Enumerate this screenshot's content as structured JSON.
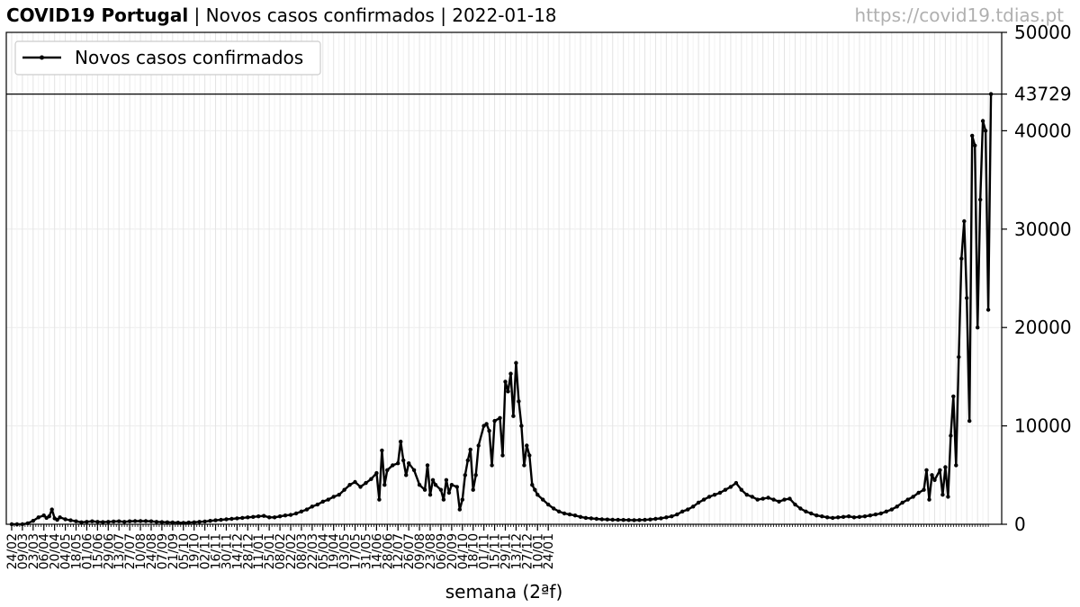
{
  "header": {
    "title_bold": "COVID19 Portugal",
    "sep1": " | ",
    "subtitle": "Novos casos confirmados",
    "sep2": " | ",
    "date": "2022-01-18"
  },
  "source_url": "https://covid19.tdias.pt",
  "chart_data": {
    "type": "line",
    "xlabel": "semana (2ªf)",
    "ylabel": "",
    "y_axis_side": "right",
    "ylim": [
      0,
      50000
    ],
    "yticks": [
      0,
      10000,
      20000,
      30000,
      40000,
      50000
    ],
    "reference_line": {
      "value": 43729,
      "label": "43729"
    },
    "grid": true,
    "legend": {
      "placement": "top-left"
    },
    "line_color": "#000000",
    "x_tick_labels": [
      "24/02",
      "09/03",
      "23/03",
      "06/04",
      "20/04",
      "04/05",
      "18/05",
      "01/06",
      "15/06",
      "29/06",
      "13/07",
      "27/07",
      "10/08",
      "24/08",
      "07/09",
      "21/09",
      "05/10",
      "19/10",
      "02/11",
      "16/11",
      "30/11",
      "14/12",
      "28/12",
      "11/01",
      "25/01",
      "08/02",
      "22/02",
      "08/03",
      "22/03",
      "05/04",
      "19/04",
      "03/05",
      "17/05",
      "31/05",
      "14/06",
      "28/06",
      "12/07",
      "26/07",
      "09/08",
      "23/08",
      "06/09",
      "20/09",
      "04/10",
      "18/10",
      "01/11",
      "15/11",
      "29/11",
      "13/12",
      "27/12",
      "10/01",
      "24/01"
    ],
    "x_unit": "weeks since 24/02/2020 (2020-02-24 = 0)",
    "series": [
      {
        "name": "Novos casos confirmados",
        "points": [
          [
            0,
            0
          ],
          [
            1,
            0
          ],
          [
            2,
            0
          ],
          [
            3,
            100
          ],
          [
            4,
            350
          ],
          [
            5,
            700
          ],
          [
            6,
            900
          ],
          [
            6.5,
            650
          ],
          [
            7,
            800
          ],
          [
            7.5,
            1500
          ],
          [
            8,
            600
          ],
          [
            8.5,
            450
          ],
          [
            9,
            700
          ],
          [
            10,
            500
          ],
          [
            11,
            400
          ],
          [
            12,
            300
          ],
          [
            13,
            200
          ],
          [
            14,
            250
          ],
          [
            15,
            300
          ],
          [
            16,
            250
          ],
          [
            17,
            220
          ],
          [
            18,
            250
          ],
          [
            19,
            280
          ],
          [
            20,
            300
          ],
          [
            21,
            250
          ],
          [
            22,
            300
          ],
          [
            23,
            320
          ],
          [
            24,
            330
          ],
          [
            25,
            320
          ],
          [
            26,
            300
          ],
          [
            27,
            250
          ],
          [
            28,
            220
          ],
          [
            29,
            200
          ],
          [
            30,
            180
          ],
          [
            31,
            160
          ],
          [
            32,
            150
          ],
          [
            33,
            170
          ],
          [
            34,
            200
          ],
          [
            35,
            250
          ],
          [
            36,
            280
          ],
          [
            37,
            350
          ],
          [
            38,
            400
          ],
          [
            39,
            450
          ],
          [
            40,
            500
          ],
          [
            41,
            550
          ],
          [
            42,
            600
          ],
          [
            43,
            650
          ],
          [
            44,
            700
          ],
          [
            45,
            750
          ],
          [
            46,
            800
          ],
          [
            47,
            850
          ],
          [
            48,
            700
          ],
          [
            49,
            700
          ],
          [
            50,
            800
          ],
          [
            51,
            900
          ],
          [
            52,
            950
          ],
          [
            53,
            1100
          ],
          [
            54,
            1300
          ],
          [
            55,
            1500
          ],
          [
            56,
            1800
          ],
          [
            57,
            2000
          ],
          [
            58,
            2300
          ],
          [
            59,
            2500
          ],
          [
            60,
            2800
          ],
          [
            61,
            3000
          ],
          [
            62,
            3500
          ],
          [
            63,
            4000
          ],
          [
            64,
            4300
          ],
          [
            65,
            3800
          ],
          [
            66,
            4200
          ],
          [
            67,
            4600
          ],
          [
            68,
            5200
          ],
          [
            68.5,
            2500
          ],
          [
            69,
            7500
          ],
          [
            69.5,
            4000
          ],
          [
            70,
            5500
          ],
          [
            71,
            6000
          ],
          [
            72,
            6200
          ],
          [
            72.5,
            8400
          ],
          [
            73,
            6500
          ],
          [
            73.5,
            5000
          ],
          [
            74,
            6200
          ],
          [
            75,
            5500
          ],
          [
            76,
            4000
          ],
          [
            77,
            3500
          ],
          [
            77.5,
            6000
          ],
          [
            78,
            3000
          ],
          [
            78.5,
            4500
          ],
          [
            79,
            4000
          ],
          [
            80,
            3500
          ],
          [
            80.5,
            2500
          ],
          [
            81,
            4500
          ],
          [
            81.5,
            3200
          ],
          [
            82,
            4000
          ],
          [
            83,
            3800
          ],
          [
            83.5,
            1500
          ],
          [
            84,
            2500
          ],
          [
            84.5,
            5000
          ],
          [
            85,
            6500
          ],
          [
            85.5,
            7600
          ],
          [
            86,
            3500
          ],
          [
            86.5,
            5000
          ],
          [
            87,
            8000
          ],
          [
            88,
            10000
          ],
          [
            88.5,
            10200
          ],
          [
            89,
            9500
          ],
          [
            89.5,
            6000
          ],
          [
            90,
            10500
          ],
          [
            91,
            10800
          ],
          [
            91.5,
            7000
          ],
          [
            92,
            14500
          ],
          [
            92.5,
            13500
          ],
          [
            93,
            15300
          ],
          [
            93.5,
            11000
          ],
          [
            94,
            16400
          ],
          [
            94.5,
            12500
          ],
          [
            95,
            10000
          ],
          [
            95.5,
            6000
          ],
          [
            96,
            8000
          ],
          [
            96.5,
            7000
          ],
          [
            97,
            4000
          ],
          [
            97.5,
            3500
          ],
          [
            98,
            3000
          ],
          [
            99,
            2500
          ],
          [
            100,
            2000
          ],
          [
            101,
            1600
          ],
          [
            102,
            1300
          ],
          [
            103,
            1100
          ],
          [
            104,
            1000
          ],
          [
            105,
            900
          ],
          [
            106,
            750
          ],
          [
            107,
            650
          ],
          [
            108,
            600
          ],
          [
            109,
            550
          ],
          [
            110,
            500
          ],
          [
            111,
            480
          ],
          [
            112,
            460
          ],
          [
            113,
            450
          ],
          [
            114,
            440
          ],
          [
            115,
            430
          ],
          [
            116,
            420
          ],
          [
            117,
            430
          ],
          [
            118,
            450
          ],
          [
            119,
            480
          ],
          [
            120,
            550
          ],
          [
            121,
            600
          ],
          [
            122,
            700
          ],
          [
            123,
            800
          ],
          [
            124,
            1000
          ],
          [
            125,
            1300
          ],
          [
            126,
            1500
          ],
          [
            127,
            1800
          ],
          [
            128,
            2200
          ],
          [
            129,
            2500
          ],
          [
            130,
            2800
          ],
          [
            131,
            3000
          ],
          [
            132,
            3200
          ],
          [
            133,
            3500
          ],
          [
            134,
            3800
          ],
          [
            135,
            4200
          ],
          [
            136,
            3500
          ],
          [
            137,
            3000
          ],
          [
            138,
            2800
          ],
          [
            139,
            2500
          ],
          [
            140,
            2600
          ],
          [
            141,
            2700
          ],
          [
            142,
            2500
          ],
          [
            143,
            2300
          ],
          [
            144,
            2500
          ],
          [
            145,
            2600
          ],
          [
            146,
            2000
          ],
          [
            147,
            1600
          ],
          [
            148,
            1300
          ],
          [
            149,
            1100
          ],
          [
            150,
            900
          ],
          [
            151,
            800
          ],
          [
            152,
            700
          ],
          [
            153,
            650
          ],
          [
            154,
            700
          ],
          [
            155,
            750
          ],
          [
            156,
            800
          ],
          [
            157,
            700
          ],
          [
            158,
            750
          ],
          [
            159,
            800
          ],
          [
            160,
            900
          ],
          [
            161,
            1000
          ],
          [
            162,
            1100
          ],
          [
            163,
            1300
          ],
          [
            164,
            1500
          ],
          [
            165,
            1800
          ],
          [
            166,
            2200
          ],
          [
            167,
            2500
          ],
          [
            168,
            2800
          ],
          [
            169,
            3200
          ],
          [
            170,
            3500
          ],
          [
            170.5,
            5500
          ],
          [
            171,
            2500
          ],
          [
            171.5,
            5000
          ],
          [
            172,
            4500
          ],
          [
            173,
            5500
          ],
          [
            173.5,
            3000
          ],
          [
            174,
            5800
          ],
          [
            174.5,
            2800
          ],
          [
            175,
            9000
          ],
          [
            175.5,
            13000
          ],
          [
            176,
            6000
          ],
          [
            176.5,
            17000
          ],
          [
            177,
            27000
          ],
          [
            177.5,
            30800
          ],
          [
            178,
            23000
          ],
          [
            178.5,
            10500
          ],
          [
            179,
            39500
          ],
          [
            179.5,
            38500
          ],
          [
            180,
            20000
          ],
          [
            180.5,
            33000
          ],
          [
            181,
            41000
          ],
          [
            181.5,
            40000
          ],
          [
            182,
            21800
          ],
          [
            182.5,
            43729
          ]
        ]
      }
    ]
  }
}
